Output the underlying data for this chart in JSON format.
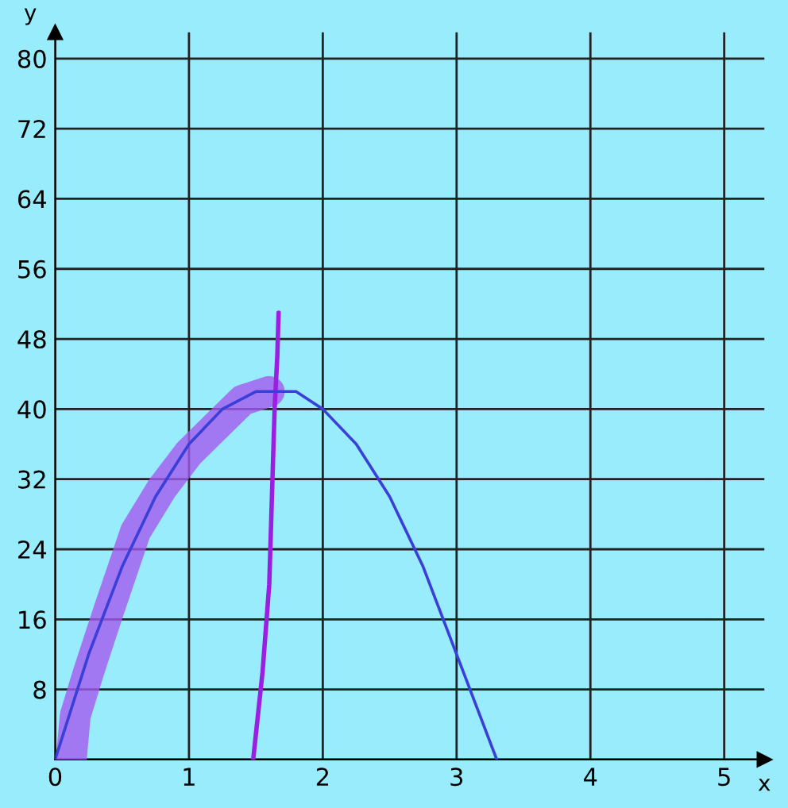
{
  "chart_data": {
    "type": "line",
    "xlabel": "x",
    "ylabel": "y",
    "xlim": [
      0,
      5.3
    ],
    "ylim": [
      0,
      83
    ],
    "xticks": [
      0,
      1,
      2,
      3,
      4,
      5
    ],
    "yticks": [
      {
        "value": 0,
        "label": null
      },
      8,
      16,
      24,
      32,
      40,
      48,
      56,
      64,
      72,
      80
    ],
    "grid": true,
    "series": [
      {
        "color": "#3a3fd8",
        "x": [
          0,
          0.25,
          0.5,
          0.75,
          1.0,
          1.25,
          1.5,
          1.65,
          1.8,
          2.0,
          2.25,
          2.5,
          2.75,
          3.0,
          3.15,
          3.3
        ],
        "values": [
          0,
          12,
          22,
          30,
          36,
          40,
          42,
          42,
          42,
          40,
          36,
          30,
          22,
          12,
          6,
          0
        ]
      },
      {
        "color": "#a35af0",
        "x": [
          0.12,
          0.15,
          0.25,
          0.4,
          0.6,
          0.8,
          1.0,
          1.2,
          1.4,
          1.6
        ],
        "values": [
          0,
          5,
          10,
          17,
          26,
          31,
          35,
          38,
          41,
          42
        ]
      },
      {
        "color": "#9a1fe0",
        "x": [
          1.48,
          1.55,
          1.6,
          1.62,
          1.64,
          1.66,
          1.67
        ],
        "values": [
          0,
          10,
          20,
          30,
          40,
          46,
          51
        ]
      }
    ]
  }
}
